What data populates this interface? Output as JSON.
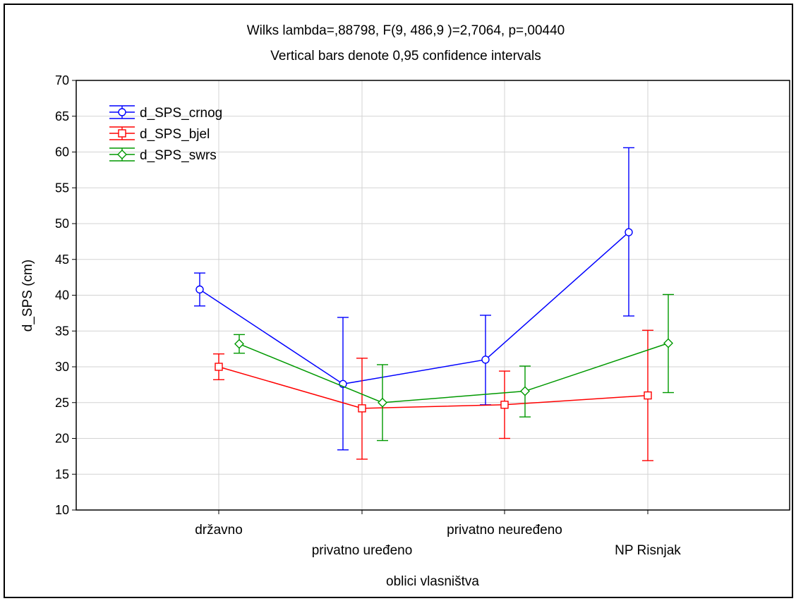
{
  "chart_data": {
    "type": "line",
    "title": "Wilks lambda=,88798, F(9, 486,9 )=2,7064, p=,00440",
    "subtitle": "Vertical bars denote 0,95 confidence intervals",
    "xlabel": "oblici vlasništva",
    "ylabel": "d_SPS (cm)",
    "categories": [
      "državno",
      "privatno uređeno",
      "privatno neuređeno",
      "NP Risnjak"
    ],
    "ylim": [
      10,
      70
    ],
    "yticks": [
      10,
      15,
      20,
      25,
      30,
      35,
      40,
      45,
      50,
      55,
      60,
      65,
      70
    ],
    "ytick_labels": [
      "10",
      "15",
      "20",
      "25",
      "30",
      "35",
      "40",
      "45",
      "50",
      "55",
      "60",
      "65",
      "70"
    ],
    "grid": true,
    "legend_position": "top-left",
    "error_bars": "0.95 confidence intervals",
    "series": [
      {
        "name": "d_SPS_crnog",
        "color": "#0000ff",
        "marker": "circle",
        "values": [
          40.8,
          27.6,
          31.0,
          48.8
        ],
        "lower": [
          38.5,
          18.4,
          24.7,
          37.1
        ],
        "upper": [
          43.1,
          36.9,
          37.2,
          60.6
        ]
      },
      {
        "name": "d_SPS_bjel",
        "color": "#ff0000",
        "marker": "square",
        "values": [
          30.0,
          24.2,
          24.7,
          26.0
        ],
        "lower": [
          28.2,
          17.1,
          20.0,
          16.9
        ],
        "upper": [
          31.8,
          31.2,
          29.4,
          35.1
        ]
      },
      {
        "name": "d_SPS_swrs",
        "color": "#009900",
        "marker": "diamond",
        "values": [
          33.2,
          25.0,
          26.6,
          33.3
        ],
        "lower": [
          31.9,
          19.7,
          23.0,
          26.4
        ],
        "upper": [
          34.5,
          30.3,
          30.1,
          40.1
        ]
      }
    ]
  }
}
